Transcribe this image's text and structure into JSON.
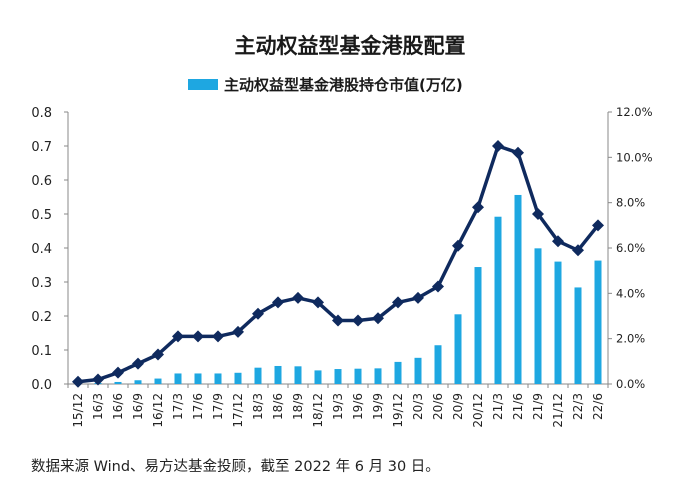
{
  "chart_data": {
    "type": "bar",
    "title": "主动权益型基金港股配置",
    "categories": [
      "15/12",
      "16/3",
      "16/6",
      "16/9",
      "16/12",
      "17/3",
      "17/6",
      "17/9",
      "17/12",
      "18/3",
      "18/6",
      "18/9",
      "18/12",
      "19/3",
      "19/6",
      "19/9",
      "19/12",
      "20/3",
      "20/6",
      "20/9",
      "20/12",
      "21/3",
      "21/6",
      "21/9",
      "21/12",
      "22/3",
      "22/6"
    ],
    "series": [
      {
        "name": "主动权益型基金港股持仓市值(万亿)",
        "type": "bar",
        "axis": "left",
        "color": "#1EA7E1",
        "values": [
          0.002,
          0.003,
          0.006,
          0.011,
          0.016,
          0.031,
          0.031,
          0.031,
          0.033,
          0.048,
          0.053,
          0.052,
          0.04,
          0.044,
          0.045,
          0.046,
          0.065,
          0.077,
          0.114,
          0.205,
          0.344,
          0.492,
          0.556,
          0.399,
          0.36,
          0.284,
          0.363
        ]
      },
      {
        "type": "line",
        "axis": "right",
        "color": "#0F2A5E",
        "marker": "diamond",
        "values": [
          0.1,
          0.2,
          0.5,
          0.9,
          1.3,
          2.1,
          2.1,
          2.1,
          2.3,
          3.1,
          3.6,
          3.8,
          3.6,
          2.8,
          2.8,
          2.9,
          3.6,
          3.8,
          4.3,
          6.1,
          7.8,
          10.5,
          10.2,
          7.5,
          6.3,
          5.9,
          7.0
        ]
      }
    ],
    "y_left": {
      "ylim": [
        0,
        0.8
      ],
      "ticks": [
        "0.0",
        "0.1",
        "0.2",
        "0.3",
        "0.4",
        "0.5",
        "0.6",
        "0.7",
        "0.8"
      ]
    },
    "y_right": {
      "ylim": [
        0,
        12
      ],
      "ticks": [
        "0.0%",
        "2.0%",
        "4.0%",
        "6.0%",
        "8.0%",
        "10.0%",
        "12.0%"
      ]
    },
    "legend": {
      "position": "top-center"
    },
    "grid": false
  },
  "source_note": "数据来源 Wind、易方达基金投顾，截至 2022 年 6 月 30 日。"
}
